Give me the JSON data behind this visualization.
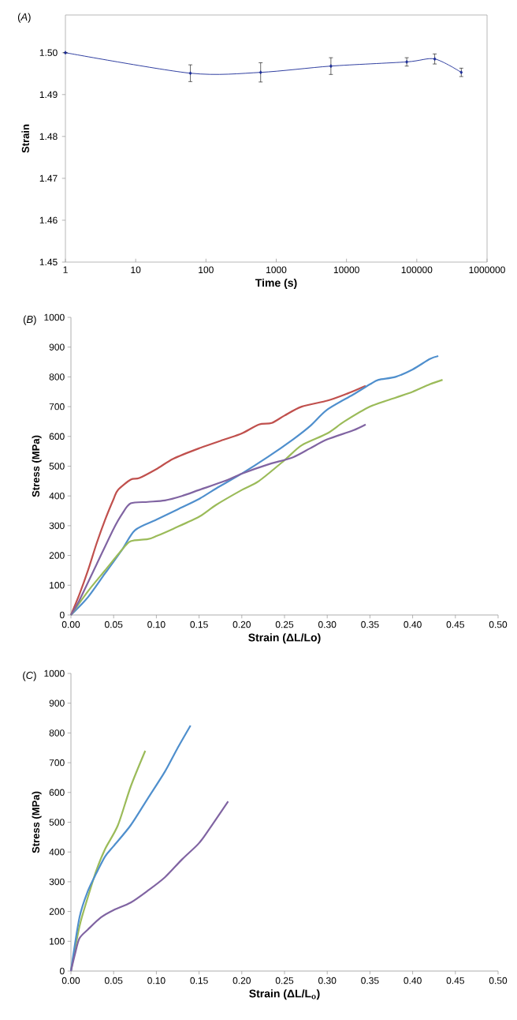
{
  "chart_data": [
    {
      "type": "line",
      "title": "(*A*)",
      "xlabel": "Time (s)",
      "ylabel": "Strain",
      "log": "x",
      "marker": "diamond",
      "xlim": [
        1,
        1000000
      ],
      "ylim": [
        1.45,
        1.509
      ],
      "xticks": [
        1,
        10,
        100,
        1000,
        10000,
        100000,
        1000000
      ],
      "yticks": [
        1.45,
        1.46,
        1.47,
        1.48,
        1.49,
        {
          "value": 1.5,
          "label": "1.50"
        }
      ],
      "x": [
        1,
        60,
        600,
        6000,
        72000,
        180000,
        430000
      ],
      "series": [
        {
          "color": "#1a2a96",
          "values": [
            1.5,
            1.4951,
            1.4953,
            1.4968,
            1.4978,
            1.4985,
            1.4953
          ],
          "errors": [
            null,
            0.002,
            0.0023,
            0.002,
            0.001,
            0.0012,
            0.001
          ]
        }
      ]
    },
    {
      "type": "line",
      "title": "(*B*)",
      "xlabel": "Strain (ΔL/Lo)",
      "ylabel": "Stress (MPa)",
      "xlim": [
        0,
        0.5
      ],
      "ylim": [
        0,
        1000
      ],
      "xticks": [
        {
          "value": 0,
          "label": "0.00"
        },
        0.05,
        {
          "value": 0.1,
          "label": "0.10"
        },
        0.15,
        {
          "value": 0.2,
          "label": "0.20"
        },
        0.25,
        {
          "value": 0.3,
          "label": "0.30"
        },
        0.35,
        {
          "value": 0.4,
          "label": "0.40"
        },
        0.45,
        {
          "value": 0.5,
          "label": "0.50"
        }
      ],
      "yticks": [
        0,
        100,
        200,
        300,
        400,
        500,
        600,
        700,
        800,
        900,
        1000
      ],
      "series": [
        {
          "color": "#c0504d",
          "x": [
            0,
            0.01,
            0.02,
            0.03,
            0.04,
            0.05,
            0.055,
            0.07,
            0.08,
            0.1,
            0.12,
            0.15,
            0.18,
            0.2,
            0.22,
            0.235,
            0.25,
            0.27,
            0.3,
            0.32,
            0.345
          ],
          "values": [
            0,
            70,
            150,
            240,
            320,
            390,
            420,
            455,
            460,
            490,
            525,
            560,
            590,
            610,
            640,
            645,
            670,
            700,
            720,
            740,
            770
          ]
        },
        {
          "color": "#4f8fcd",
          "x": [
            0,
            0.02,
            0.04,
            0.06,
            0.075,
            0.1,
            0.125,
            0.15,
            0.17,
            0.2,
            0.23,
            0.26,
            0.28,
            0.3,
            0.33,
            0.35,
            0.36,
            0.38,
            0.4,
            0.42,
            0.43
          ],
          "values": [
            0,
            60,
            140,
            220,
            285,
            320,
            355,
            390,
            425,
            475,
            530,
            590,
            635,
            690,
            740,
            775,
            790,
            800,
            825,
            860,
            870
          ]
        },
        {
          "color": "#9bbb59",
          "x": [
            0,
            0.02,
            0.04,
            0.06,
            0.07,
            0.09,
            0.1,
            0.12,
            0.15,
            0.17,
            0.2,
            0.22,
            0.25,
            0.27,
            0.3,
            0.32,
            0.35,
            0.38,
            0.4,
            0.42,
            0.435
          ],
          "values": [
            0,
            80,
            150,
            220,
            248,
            255,
            265,
            290,
            330,
            370,
            420,
            450,
            520,
            570,
            610,
            650,
            700,
            730,
            750,
            775,
            790
          ]
        },
        {
          "color": "#8064a2",
          "x": [
            0,
            0.01,
            0.03,
            0.05,
            0.06,
            0.07,
            0.09,
            0.11,
            0.13,
            0.15,
            0.18,
            0.2,
            0.23,
            0.26,
            0.28,
            0.3,
            0.33,
            0.345
          ],
          "values": [
            0,
            50,
            170,
            290,
            340,
            375,
            380,
            385,
            400,
            420,
            450,
            475,
            505,
            530,
            560,
            590,
            620,
            640
          ]
        }
      ]
    },
    {
      "type": "line",
      "title": "(*C*)",
      "xlabel": "Strain (ΔL/L$_{o}$)",
      "ylabel": "Stress (MPa)",
      "xlim": [
        0,
        0.5
      ],
      "ylim": [
        0,
        1000
      ],
      "xticks": [
        {
          "value": 0,
          "label": "0.00"
        },
        0.05,
        {
          "value": 0.1,
          "label": "0.10"
        },
        0.15,
        {
          "value": 0.2,
          "label": "0.20"
        },
        0.25,
        {
          "value": 0.3,
          "label": "0.30"
        },
        0.35,
        {
          "value": 0.4,
          "label": "0.40"
        },
        0.45,
        {
          "value": 0.5,
          "label": "0.50"
        }
      ],
      "yticks": [
        0,
        100,
        200,
        300,
        400,
        500,
        600,
        700,
        800,
        900,
        1000
      ],
      "series": [
        {
          "color": "#9bbb59",
          "x": [
            0,
            0.01,
            0.02,
            0.03,
            0.04,
            0.055,
            0.07,
            0.087
          ],
          "values": [
            0,
            150,
            250,
            340,
            410,
            490,
            620,
            740
          ]
        },
        {
          "color": "#4f8fcd",
          "x": [
            0,
            0.01,
            0.02,
            0.03,
            0.04,
            0.05,
            0.07,
            0.09,
            0.11,
            0.125,
            0.14
          ],
          "values": [
            0,
            180,
            270,
            330,
            385,
            420,
            490,
            580,
            670,
            750,
            825
          ]
        },
        {
          "color": "#8064a2",
          "x": [
            0,
            0.005,
            0.01,
            0.02,
            0.035,
            0.05,
            0.07,
            0.09,
            0.11,
            0.13,
            0.15,
            0.165,
            0.184
          ],
          "values": [
            0,
            60,
            110,
            140,
            180,
            205,
            230,
            270,
            315,
            375,
            430,
            490,
            570
          ]
        }
      ]
    }
  ]
}
